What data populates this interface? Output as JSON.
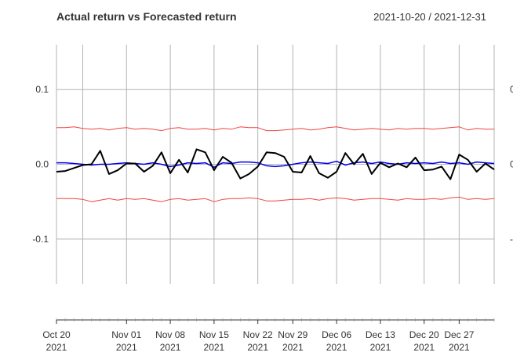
{
  "chart_data": {
    "type": "line",
    "title": "Actual return vs Forecasted return",
    "date_range": "2021-10-20 / 2021-12-31",
    "ylim": [
      -0.16,
      0.16
    ],
    "y_ticks": [
      {
        "value": 0.1,
        "label": "0.1"
      },
      {
        "value": 0.0,
        "label": "0.0"
      },
      {
        "value": -0.1,
        "label": "-0.1"
      }
    ],
    "x_ticks": [
      {
        "date": "2021-10-20",
        "line1": "Oct 20",
        "line2": "2021"
      },
      {
        "date": "2021-11-01",
        "line1": "Nov 01",
        "line2": "2021"
      },
      {
        "date": "2021-11-08",
        "line1": "Nov 08",
        "line2": "2021"
      },
      {
        "date": "2021-11-15",
        "line1": "Nov 15",
        "line2": "2021"
      },
      {
        "date": "2021-11-22",
        "line1": "Nov 22",
        "line2": "2021"
      },
      {
        "date": "2021-11-29",
        "line1": "Nov 29",
        "line2": "2021"
      },
      {
        "date": "2021-12-06",
        "line1": "Dec 06",
        "line2": "2021"
      },
      {
        "date": "2021-12-13",
        "line1": "Dec 13",
        "line2": "2021"
      },
      {
        "date": "2021-12-20",
        "line1": "Dec 20",
        "line2": "2021"
      },
      {
        "date": "2021-12-27",
        "line1": "Dec 27",
        "line2": "2021"
      }
    ],
    "extra_gridline_dates": [
      "2021-10-25"
    ],
    "grid": true,
    "x": [
      "2021-10-20",
      "2021-10-21",
      "2021-10-22",
      "2021-10-25",
      "2021-10-26",
      "2021-10-27",
      "2021-10-28",
      "2021-10-29",
      "2021-11-01",
      "2021-11-02",
      "2021-11-03",
      "2021-11-04",
      "2021-11-05",
      "2021-11-08",
      "2021-11-09",
      "2021-11-10",
      "2021-11-11",
      "2021-11-12",
      "2021-11-15",
      "2021-11-16",
      "2021-11-17",
      "2021-11-18",
      "2021-11-19",
      "2021-11-22",
      "2021-11-23",
      "2021-11-24",
      "2021-11-26",
      "2021-11-29",
      "2021-11-30",
      "2021-12-01",
      "2021-12-02",
      "2021-12-03",
      "2021-12-06",
      "2021-12-07",
      "2021-12-08",
      "2021-12-09",
      "2021-12-10",
      "2021-12-13",
      "2021-12-14",
      "2021-12-15",
      "2021-12-16",
      "2021-12-17",
      "2021-12-20",
      "2021-12-21",
      "2021-12-22",
      "2021-12-23",
      "2021-12-27",
      "2021-12-28",
      "2021-12-29",
      "2021-12-30",
      "2021-12-31"
    ],
    "series": [
      {
        "color": "#000000",
        "width": 2,
        "values": [
          -0.01,
          -0.009,
          -0.005,
          -0.001,
          0.0,
          0.018,
          -0.013,
          -0.008,
          0.001,
          0.001,
          -0.01,
          -0.002,
          0.016,
          -0.012,
          0.006,
          -0.011,
          0.02,
          0.016,
          -0.008,
          0.01,
          0.002,
          -0.019,
          -0.013,
          -0.003,
          0.016,
          0.015,
          0.01,
          -0.01,
          -0.011,
          0.011,
          -0.012,
          -0.018,
          -0.01,
          0.015,
          0.0,
          0.014,
          -0.013,
          0.002,
          -0.004,
          0.001,
          -0.004,
          0.009,
          -0.008,
          -0.007,
          -0.003,
          -0.02,
          0.013,
          0.006,
          -0.01,
          0.001,
          -0.007
        ]
      },
      {
        "color": "#0000ee",
        "width": 1.5,
        "values": [
          0.002,
          0.002,
          0.001,
          0.0,
          -0.001,
          0.0,
          0.0,
          0.001,
          0.002,
          0.001,
          0.0,
          0.002,
          0.0,
          -0.003,
          -0.001,
          0.002,
          0.001,
          0.002,
          -0.004,
          0.002,
          0.001,
          0.003,
          0.003,
          0.002,
          -0.002,
          -0.003,
          -0.002,
          0.0,
          0.002,
          0.003,
          0.002,
          0.001,
          0.004,
          -0.001,
          0.002,
          0.003,
          0.001,
          0.003,
          0.001,
          0.0,
          0.002,
          0.001,
          0.002,
          0.001,
          0.003,
          0.001,
          0.002,
          0.0,
          0.003,
          0.002,
          0.001
        ]
      },
      {
        "color": "#ee4444",
        "width": 1,
        "values": [
          0.049,
          0.049,
          0.05,
          0.048,
          0.047,
          0.048,
          0.046,
          0.048,
          0.049,
          0.047,
          0.048,
          0.047,
          0.045,
          0.048,
          0.049,
          0.047,
          0.047,
          0.048,
          0.046,
          0.048,
          0.047,
          0.05,
          0.049,
          0.049,
          0.045,
          0.045,
          0.046,
          0.047,
          0.048,
          0.046,
          0.047,
          0.049,
          0.05,
          0.048,
          0.046,
          0.047,
          0.048,
          0.047,
          0.046,
          0.048,
          0.047,
          0.048,
          0.048,
          0.047,
          0.048,
          0.049,
          0.05,
          0.046,
          0.048,
          0.047,
          0.047
        ]
      },
      {
        "color": "#ee4444",
        "width": 1,
        "values": [
          -0.046,
          -0.046,
          -0.046,
          -0.047,
          -0.05,
          -0.048,
          -0.046,
          -0.048,
          -0.046,
          -0.047,
          -0.046,
          -0.048,
          -0.05,
          -0.047,
          -0.046,
          -0.048,
          -0.047,
          -0.046,
          -0.05,
          -0.047,
          -0.046,
          -0.046,
          -0.045,
          -0.046,
          -0.049,
          -0.049,
          -0.048,
          -0.047,
          -0.047,
          -0.046,
          -0.048,
          -0.046,
          -0.045,
          -0.046,
          -0.048,
          -0.047,
          -0.046,
          -0.046,
          -0.047,
          -0.048,
          -0.046,
          -0.047,
          -0.047,
          -0.046,
          -0.047,
          -0.045,
          -0.044,
          -0.047,
          -0.046,
          -0.047,
          -0.046
        ]
      }
    ]
  }
}
